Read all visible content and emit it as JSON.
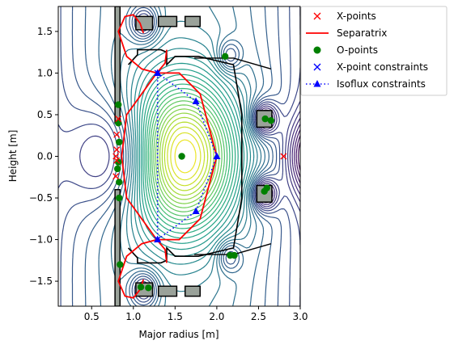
{
  "chart_data": {
    "type": "contour",
    "xlabel": "Major radius [m]",
    "ylabel": "Height [m]",
    "xlim": [
      0.1,
      3.0
    ],
    "ylim": [
      -1.8,
      1.8
    ],
    "xticks": [
      0.5,
      1.0,
      1.5,
      2.0,
      2.5,
      3.0
    ],
    "xtick_labels": [
      "0.5",
      "1.0",
      "1.5",
      "2.0",
      "2.5",
      "3.0"
    ],
    "yticks": [
      -1.5,
      -1.0,
      -0.5,
      0.0,
      0.5,
      1.0,
      1.5
    ],
    "ytick_labels": [
      "−1.5",
      "−1.0",
      "−0.5",
      "0.0",
      "0.5",
      "1.0",
      "1.5"
    ],
    "legend": {
      "placement": "outside-upper-right",
      "entries": [
        {
          "label": "X-points",
          "marker": "x",
          "color": "#ff0000"
        },
        {
          "label": "Separatrix",
          "marker": "line",
          "color": "#ff0000"
        },
        {
          "label": "O-points",
          "marker": "circle",
          "color": "#008000"
        },
        {
          "label": "X-point constraints",
          "marker": "x",
          "color": "#0000ff"
        },
        {
          "label": "Isoflux constraints",
          "marker": "dotted-triangle",
          "color": "#0000ff"
        }
      ]
    },
    "magnetic_axis": [
      1.58,
      0.0
    ],
    "separatrix": [
      [
        1.28,
        1.0
      ],
      [
        1.55,
        1.0
      ],
      [
        1.8,
        0.75
      ],
      [
        2.0,
        0.0
      ],
      [
        1.8,
        -0.75
      ],
      [
        1.55,
        -1.0
      ],
      [
        1.28,
        -1.0
      ],
      [
        0.92,
        -0.5
      ],
      [
        0.86,
        0.0
      ],
      [
        0.92,
        0.5
      ],
      [
        1.28,
        1.0
      ]
    ],
    "separatrix_legs": [
      [
        [
          1.28,
          1.0
        ],
        [
          1.1,
          1.05
        ],
        [
          0.92,
          1.2
        ],
        [
          0.82,
          1.5
        ],
        [
          0.9,
          1.68
        ],
        [
          1.0,
          1.7
        ],
        [
          1.08,
          1.6
        ],
        [
          1.12,
          1.48
        ]
      ],
      [
        [
          1.28,
          1.0
        ],
        [
          1.38,
          1.12
        ],
        [
          1.4,
          1.28
        ]
      ],
      [
        [
          1.28,
          -1.0
        ],
        [
          1.1,
          -1.05
        ],
        [
          0.92,
          -1.2
        ],
        [
          0.82,
          -1.5
        ],
        [
          0.9,
          -1.68
        ],
        [
          1.0,
          -1.7
        ],
        [
          1.08,
          -1.6
        ],
        [
          1.12,
          -1.48
        ]
      ],
      [
        [
          1.28,
          -1.0
        ],
        [
          1.38,
          -1.12
        ],
        [
          1.4,
          -1.28
        ]
      ]
    ],
    "isoflux_constraints": [
      [
        1.29,
        1.0
      ],
      [
        1.75,
        0.66
      ],
      [
        2.0,
        0.0
      ],
      [
        1.75,
        -0.66
      ],
      [
        1.29,
        -1.0
      ]
    ],
    "isoflux_lines": [
      [
        [
          1.29,
          1.0
        ],
        [
          1.75,
          0.66
        ],
        [
          2.0,
          0.0
        ],
        [
          1.75,
          -0.66
        ],
        [
          1.29,
          -1.0
        ]
      ],
      [
        [
          1.29,
          1.0
        ],
        [
          1.29,
          -1.0
        ]
      ]
    ],
    "xpoint_constraints": [
      [
        1.29,
        1.0
      ],
      [
        1.29,
        -1.0
      ]
    ],
    "x_points": [
      [
        0.82,
        0.45
      ],
      [
        0.8,
        0.26
      ],
      [
        0.8,
        0.08
      ],
      [
        0.79,
        0.0
      ],
      [
        0.79,
        -0.24
      ],
      [
        0.8,
        -0.05
      ],
      [
        2.8,
        0.0
      ]
    ],
    "o_points": [
      [
        0.82,
        0.62
      ],
      [
        0.82,
        0.4
      ],
      [
        0.83,
        0.17
      ],
      [
        0.82,
        -0.07
      ],
      [
        0.81,
        -0.15
      ],
      [
        0.83,
        -0.31
      ],
      [
        0.83,
        -0.5
      ],
      [
        0.84,
        -1.3
      ],
      [
        1.09,
        -1.57
      ],
      [
        1.18,
        -1.58
      ],
      [
        2.1,
        1.2
      ],
      [
        2.16,
        -1.19
      ],
      [
        2.21,
        -1.19
      ],
      [
        2.58,
        0.45
      ],
      [
        2.65,
        0.43
      ],
      [
        2.6,
        -0.38
      ],
      [
        2.57,
        -0.42
      ],
      [
        1.58,
        0.0
      ]
    ],
    "coils": [
      {
        "x": 0.78,
        "y": 0.4,
        "w": 0.06,
        "h": 1.4
      },
      {
        "x": 0.78,
        "y": -1.8,
        "w": 0.06,
        "h": 1.4
      },
      {
        "x": 1.03,
        "y": 1.52,
        "w": 0.2,
        "h": 0.16
      },
      {
        "x": 1.3,
        "y": 1.56,
        "w": 0.22,
        "h": 0.12
      },
      {
        "x": 1.03,
        "y": -1.68,
        "w": 0.2,
        "h": 0.16
      },
      {
        "x": 1.3,
        "y": -1.68,
        "w": 0.22,
        "h": 0.12
      },
      {
        "x": 1.62,
        "y": 1.56,
        "w": 0.18,
        "h": 0.12
      },
      {
        "x": 1.62,
        "y": -1.68,
        "w": 0.18,
        "h": 0.12
      },
      {
        "x": 2.48,
        "y": 0.35,
        "w": 0.18,
        "h": 0.2
      },
      {
        "x": 2.48,
        "y": -0.55,
        "w": 0.18,
        "h": 0.2
      }
    ],
    "wall": [
      [
        0.94,
        1.1
      ],
      [
        1.05,
        1.22
      ],
      [
        1.05,
        1.28
      ],
      [
        1.33,
        1.28
      ],
      [
        1.4,
        1.25
      ],
      [
        1.4,
        1.1
      ],
      [
        1.5,
        1.2
      ],
      [
        1.78,
        1.2
      ],
      [
        2.2,
        1.1
      ],
      [
        2.3,
        0.5
      ],
      [
        2.3,
        -0.5
      ],
      [
        2.2,
        -1.1
      ],
      [
        1.78,
        -1.2
      ],
      [
        1.5,
        -1.2
      ],
      [
        1.4,
        -1.1
      ],
      [
        1.4,
        -1.25
      ],
      [
        1.33,
        -1.28
      ],
      [
        1.05,
        -1.28
      ],
      [
        1.05,
        -1.22
      ],
      [
        0.94,
        -1.1
      ]
    ],
    "plates": [
      [
        [
          1.73,
          1.18
        ],
        [
          2.2,
          1.18
        ],
        [
          2.65,
          1.05
        ],
        [
          2.2,
          1.18
        ]
      ],
      [
        [
          1.73,
          -1.18
        ],
        [
          2.2,
          -1.18
        ],
        [
          2.65,
          -1.05
        ],
        [
          2.2,
          -1.18
        ]
      ]
    ]
  }
}
